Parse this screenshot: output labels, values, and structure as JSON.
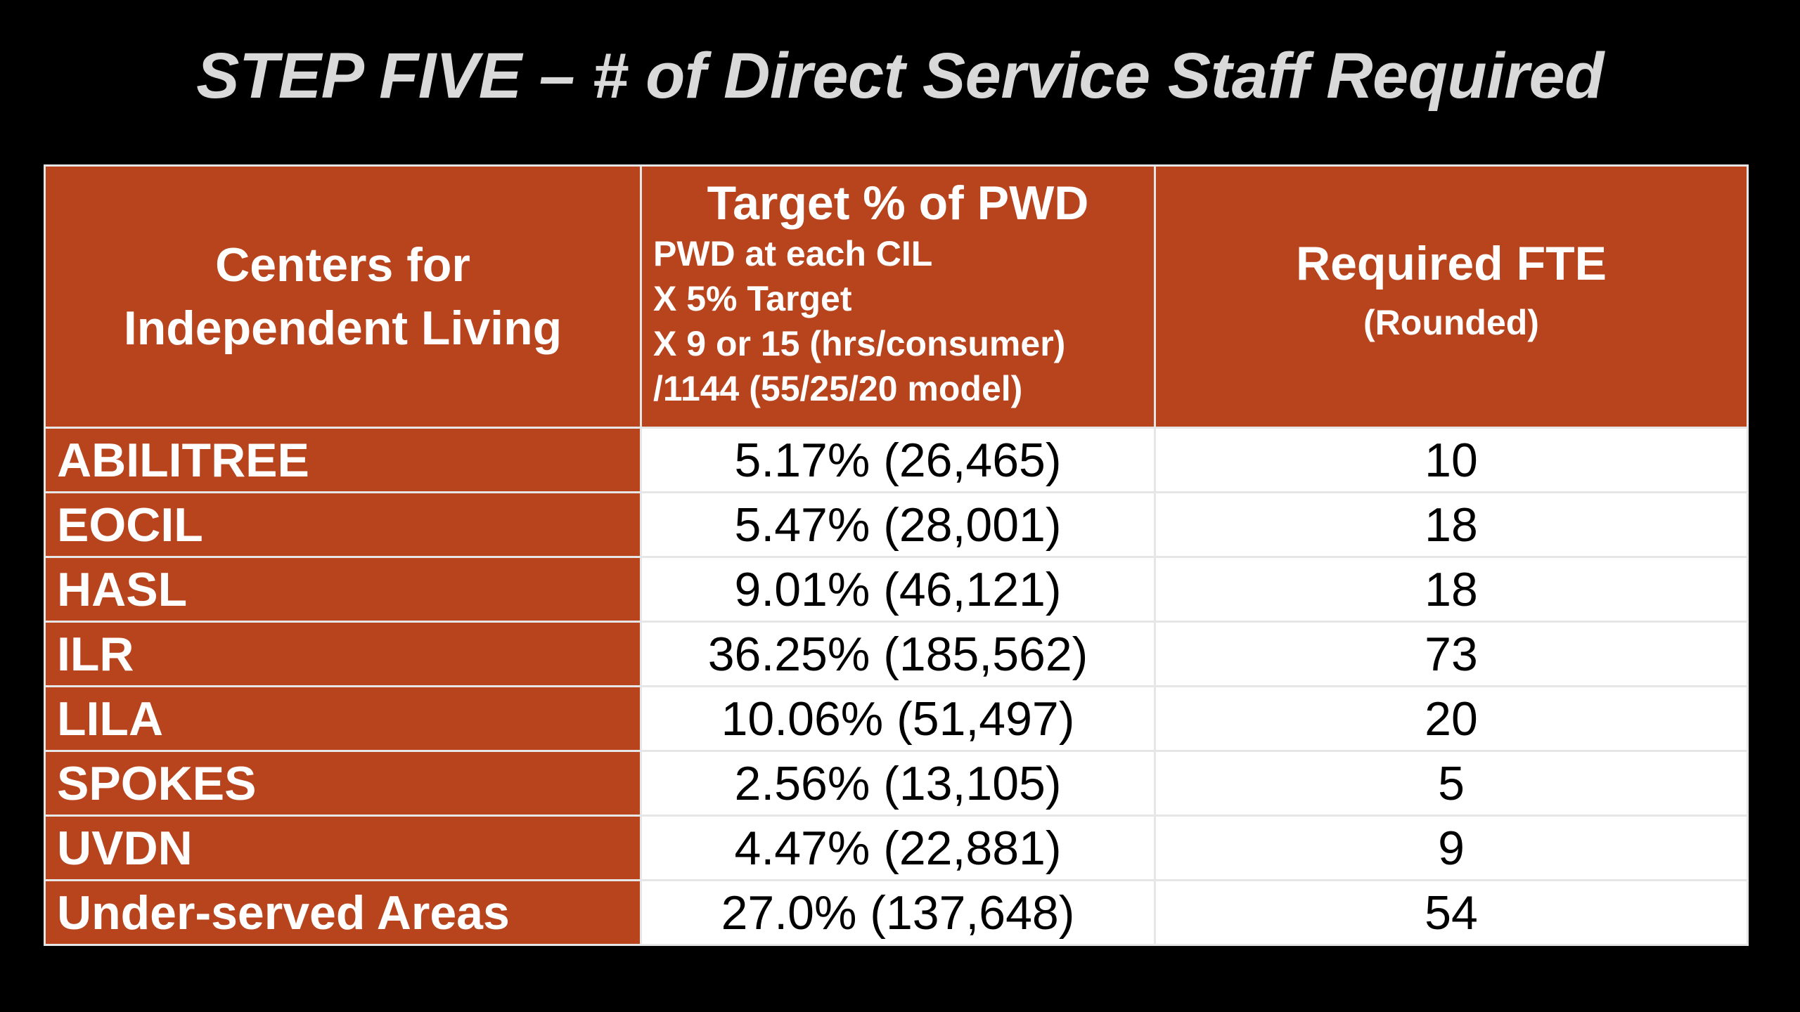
{
  "title": "STEP FIVE – # of Direct Service Staff Required",
  "table": {
    "headers": {
      "col1_line1": "Centers for",
      "col1_line2": "Independent Living",
      "col2_title": "Target % of PWD",
      "col2_lines": [
        "PWD at each CIL",
        "X 5% Target",
        "X 9 or 15 (hrs/consumer)",
        " /1144 (55/25/20 model)"
      ],
      "col3_title": "Required FTE",
      "col3_sub": "(Rounded)"
    },
    "rows": [
      {
        "center": "ABILITREE",
        "target": "5.17% (26,465)",
        "fte": "10"
      },
      {
        "center": "EOCIL",
        "target": "5.47% (28,001)",
        "fte": "18"
      },
      {
        "center": "HASL",
        "target": "9.01% (46,121)",
        "fte": "18"
      },
      {
        "center": "ILR",
        "target": "36.25% (185,562)",
        "fte": "73"
      },
      {
        "center": "LILA",
        "target": "10.06% (51,497)",
        "fte": "20"
      },
      {
        "center": "SPOKES",
        "target": "2.56% (13,105)",
        "fte": "5"
      },
      {
        "center": "UVDN",
        "target": "4.47% (22,881)",
        "fte": "9"
      },
      {
        "center": "Under-served Areas",
        "target": "27.0% (137,648)",
        "fte": "54"
      }
    ]
  },
  "colors": {
    "background": "#000000",
    "header_fill": "#b8441d",
    "title_text": "#d9d9d9",
    "cell_fill": "#ffffff"
  }
}
